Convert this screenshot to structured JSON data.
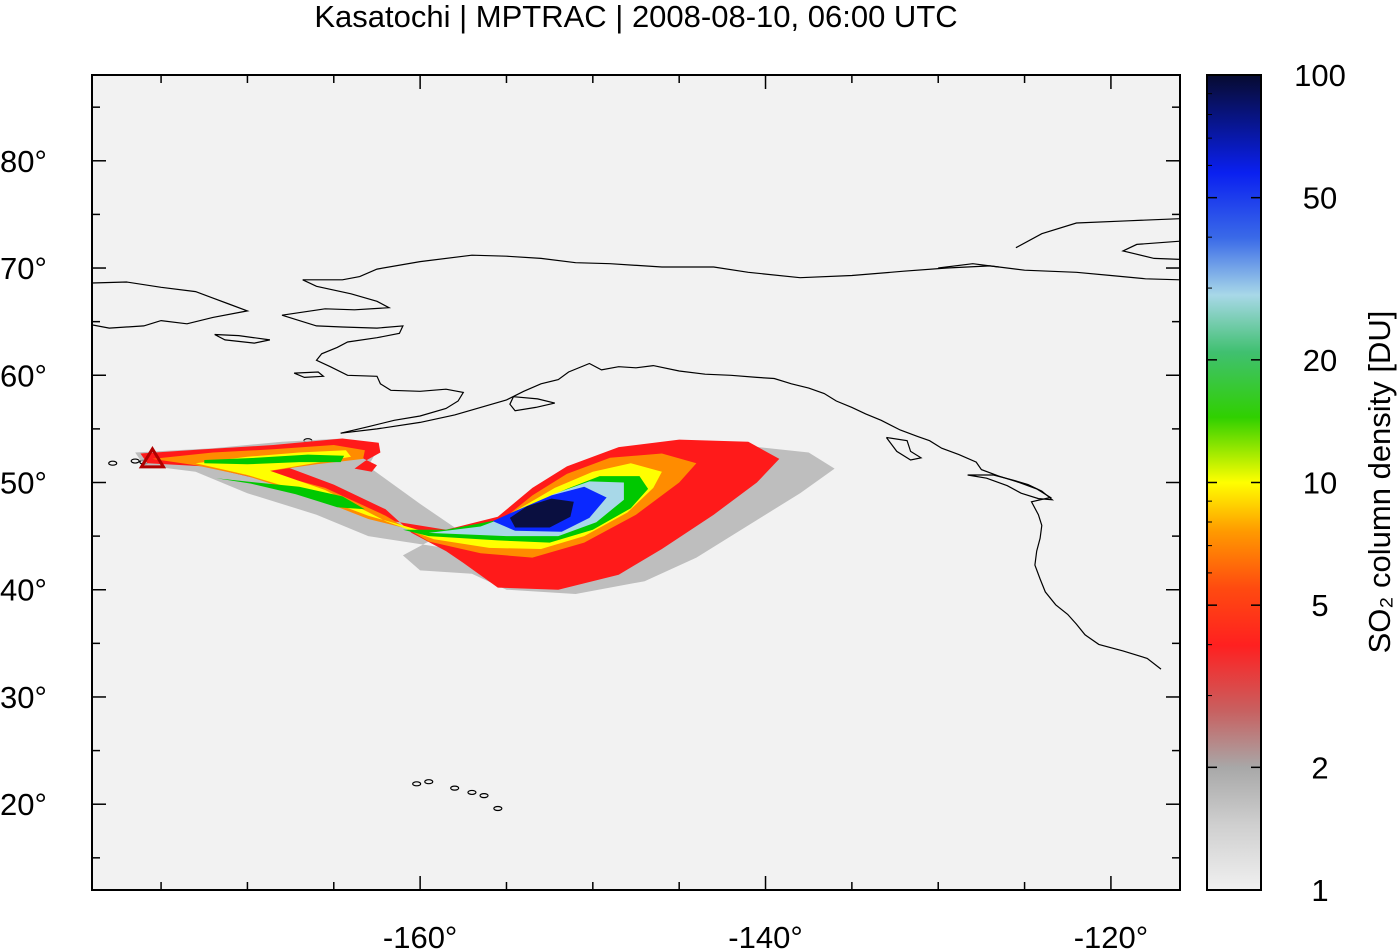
{
  "chart_data": {
    "type": "heatmap",
    "title": "Kasatochi | MPTRAC | 2008-08-10, 06:00 UTC",
    "xlim": [
      -179,
      -116
    ],
    "ylim": [
      12,
      88
    ],
    "x_ticks": [
      {
        "value": -160,
        "label": "-160°"
      },
      {
        "value": -140,
        "label": "-140°"
      },
      {
        "value": -120,
        "label": "-120°"
      }
    ],
    "y_ticks": [
      {
        "value": 20,
        "label": "20°"
      },
      {
        "value": 30,
        "label": "30°"
      },
      {
        "value": 40,
        "label": "40°"
      },
      {
        "value": 50,
        "label": "50°"
      },
      {
        "value": 60,
        "label": "60°"
      },
      {
        "value": 70,
        "label": "70°"
      },
      {
        "value": 80,
        "label": "80°"
      }
    ],
    "colorbar": {
      "scale": "log",
      "range": [
        1,
        100
      ],
      "label": "SO₂ column density [DU]",
      "ticks": [
        {
          "value": 1,
          "label": "1"
        },
        {
          "value": 2,
          "label": "2"
        },
        {
          "value": 5,
          "label": "5"
        },
        {
          "value": 10,
          "label": "10"
        },
        {
          "value": 20,
          "label": "20"
        },
        {
          "value": 50,
          "label": "50"
        },
        {
          "value": 100,
          "label": "100"
        }
      ]
    },
    "colors": {
      "background": "#f2f2f2",
      "low": "#e6e6e6",
      "mid_gray": "#b0b0b0",
      "red": "#ff1a1a",
      "orange": "#ff8c00",
      "yellow": "#ffff00",
      "green": "#00c800",
      "light_blue": "#a8d8e8",
      "blue": "#0a28ff",
      "dark_navy": "#0a0f40",
      "volcano_marker": "#b00000"
    },
    "volcano": {
      "lon": -175.5,
      "lat": 52.2
    },
    "plume_structures": [
      {
        "name": "core",
        "lon": -153,
        "lat": 47,
        "peak_du": 100
      },
      {
        "name": "northern-arc",
        "lon": -167,
        "lat": 52.3,
        "peak_du": 15
      },
      {
        "name": "inner-arc",
        "lon": -169,
        "lat": 50,
        "peak_du": 15
      },
      {
        "name": "southern-arm",
        "lon": -159,
        "lat": 44.5,
        "peak_du": 20
      },
      {
        "name": "eastern-arm",
        "lon": -145,
        "lat": 52,
        "peak_du": 8
      },
      {
        "name": "southern-tail",
        "lon": -155,
        "lat": 40.5,
        "peak_du": 3
      }
    ]
  }
}
